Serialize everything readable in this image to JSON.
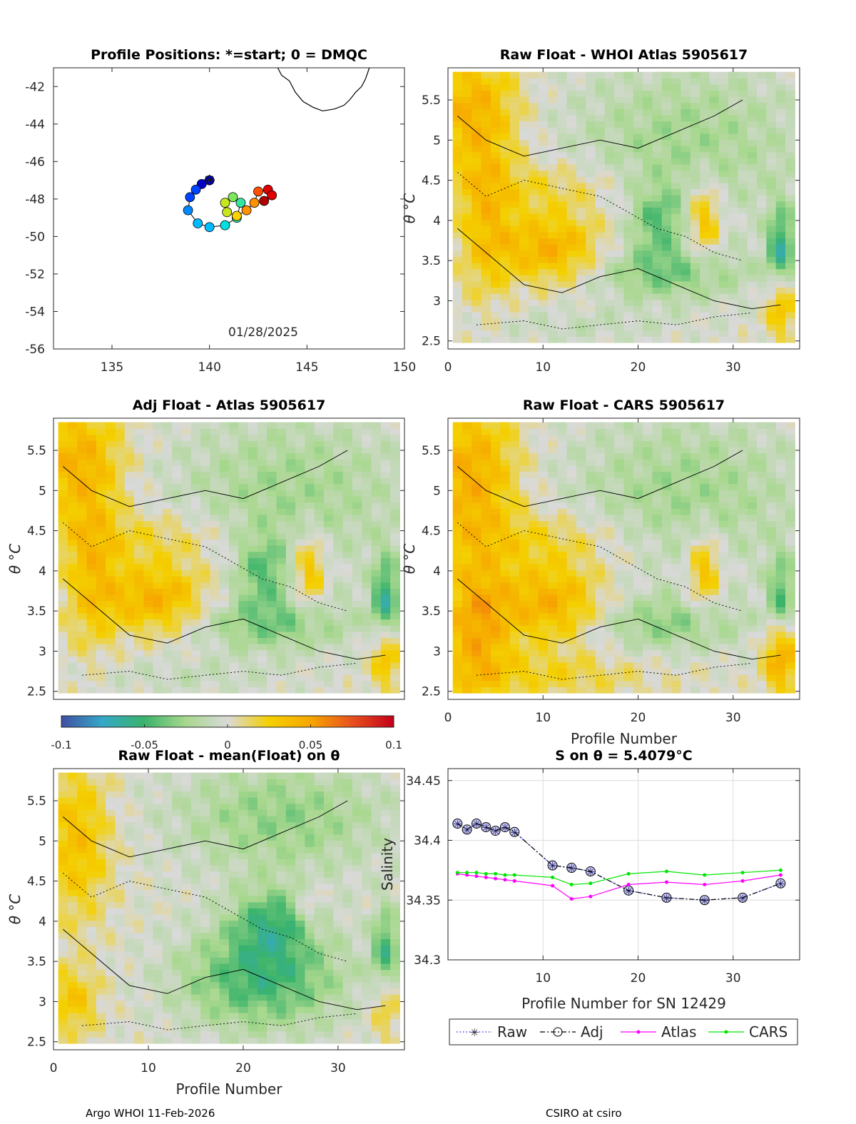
{
  "footer": {
    "left": "Argo WHOI 11-Feb-2026",
    "right": "CSIRO at csiro"
  },
  "colorbar": {
    "ticks": [
      "-0.1",
      "-0.05",
      "0",
      "0.05",
      "0.1"
    ],
    "stops": [
      "#3f4fa3",
      "#35a9c7",
      "#3ab36a",
      "#a8d88e",
      "#d9d9d9",
      "#f4d000",
      "#f7a600",
      "#e8501e",
      "#c3001a"
    ]
  },
  "chart_data": [
    {
      "type": "scatter",
      "id": "positions",
      "title": "Profile Positions: *=start; 0 = DMQC",
      "annotation": "01/28/2025",
      "xlim": [
        132,
        150
      ],
      "ylim": [
        -56,
        -41
      ],
      "xticks": [
        "135",
        "140",
        "145",
        "150"
      ],
      "yticks": [
        "-42",
        "-44",
        "-46",
        "-48",
        "-50",
        "-52",
        "-54",
        "-56"
      ],
      "xtick_values": [
        135,
        140,
        145,
        150
      ],
      "ytick_values": [
        -42,
        -44,
        -46,
        -48,
        -50,
        -52,
        -54,
        -56
      ],
      "track": [
        [
          140.0,
          -47.0
        ],
        [
          139.6,
          -47.2
        ],
        [
          139.3,
          -47.5
        ],
        [
          139.0,
          -47.9
        ],
        [
          138.9,
          -48.6
        ],
        [
          139.4,
          -49.3
        ],
        [
          140.0,
          -49.5
        ],
        [
          140.8,
          -49.4
        ],
        [
          141.4,
          -49.0
        ],
        [
          141.6,
          -48.2
        ],
        [
          141.2,
          -47.9
        ],
        [
          140.8,
          -48.2
        ],
        [
          140.9,
          -48.7
        ],
        [
          141.4,
          -48.9
        ],
        [
          141.9,
          -48.6
        ],
        [
          142.3,
          -48.2
        ],
        [
          142.5,
          -47.6
        ],
        [
          143.0,
          -47.5
        ],
        [
          143.2,
          -47.8
        ],
        [
          142.8,
          -48.1
        ]
      ],
      "start_marker": "*",
      "coast": [
        [
          143.5,
          -41.0
        ],
        [
          143.7,
          -41.4
        ],
        [
          144.1,
          -41.7
        ],
        [
          144.4,
          -42.3
        ],
        [
          144.8,
          -42.8
        ],
        [
          145.3,
          -43.1
        ],
        [
          145.8,
          -43.3
        ],
        [
          146.4,
          -43.2
        ],
        [
          146.9,
          -43.0
        ],
        [
          147.2,
          -42.7
        ],
        [
          147.5,
          -42.3
        ],
        [
          147.8,
          -42.0
        ],
        [
          148.0,
          -41.6
        ],
        [
          148.2,
          -41.0
        ]
      ]
    },
    {
      "type": "heatmap",
      "id": "raw_whoi",
      "title": "Raw Float - WHOI Atlas  5905617",
      "xlim": [
        0,
        37
      ],
      "ylim": [
        2.4,
        5.9
      ],
      "xticks": [
        "0",
        "10",
        "20",
        "30"
      ],
      "yticks": [
        "2.5",
        "3",
        "3.5",
        "4",
        "4.5",
        "5",
        "5.5"
      ],
      "xtick_values": [
        0,
        10,
        20,
        30
      ],
      "ytick_values": [
        2.5,
        3,
        3.5,
        4,
        4.5,
        5,
        5.5
      ],
      "ylabel": "θ °C",
      "xlabel": "",
      "clim": [
        -0.1,
        0.1
      ],
      "profiles": 36,
      "features": [
        {
          "x": 2.5,
          "y": 5.4,
          "sx": 3.5,
          "sy": 0.55,
          "a": 0.04
        },
        {
          "x": 4.0,
          "y": 4.0,
          "sx": 2.0,
          "sy": 0.7,
          "a": 0.03
        },
        {
          "x": 11.0,
          "y": 3.65,
          "sx": 4.0,
          "sy": 0.3,
          "a": 0.045
        },
        {
          "x": 11.0,
          "y": 4.4,
          "sx": 6.0,
          "sy": 0.25,
          "a": 0.02
        },
        {
          "x": 27.0,
          "y": 4.0,
          "sx": 1.2,
          "sy": 0.35,
          "a": 0.04
        },
        {
          "x": 23.0,
          "y": 3.35,
          "sx": 6.0,
          "sy": 0.25,
          "a": -0.035
        },
        {
          "x": 25.0,
          "y": 5.0,
          "sx": 9.0,
          "sy": 0.7,
          "a": -0.025
        },
        {
          "x": 22.0,
          "y": 4.0,
          "sx": 2.0,
          "sy": 0.3,
          "a": -0.035
        },
        {
          "x": 35.0,
          "y": 3.6,
          "sx": 1.0,
          "sy": 0.4,
          "a": -0.06
        },
        {
          "x": 35.0,
          "y": 3.0,
          "sx": 1.0,
          "sy": 0.3,
          "a": 0.05
        },
        {
          "x": 14.0,
          "y": 2.7,
          "sx": 8.0,
          "sy": 0.15,
          "a": -0.01
        }
      ]
    },
    {
      "type": "heatmap",
      "id": "adj_atlas",
      "title": "Adj Float - Atlas  5905617",
      "xlim": [
        0,
        37
      ],
      "ylim": [
        2.4,
        5.9
      ],
      "xticks": [],
      "yticks": [
        "2.5",
        "3",
        "3.5",
        "4",
        "4.5",
        "5",
        "5.5"
      ],
      "xtick_values": [],
      "ytick_values": [
        2.5,
        3,
        3.5,
        4,
        4.5,
        5,
        5.5
      ],
      "ylabel": "θ °C",
      "xlabel": "",
      "clim": [
        -0.1,
        0.1
      ],
      "profiles": 36,
      "features": [
        {
          "x": 2.5,
          "y": 5.4,
          "sx": 3.5,
          "sy": 0.55,
          "a": 0.04
        },
        {
          "x": 4.0,
          "y": 4.0,
          "sx": 2.0,
          "sy": 0.7,
          "a": 0.03
        },
        {
          "x": 11.0,
          "y": 3.65,
          "sx": 4.0,
          "sy": 0.3,
          "a": 0.045
        },
        {
          "x": 11.0,
          "y": 4.4,
          "sx": 6.0,
          "sy": 0.25,
          "a": 0.02
        },
        {
          "x": 27.0,
          "y": 4.0,
          "sx": 1.2,
          "sy": 0.35,
          "a": 0.04
        },
        {
          "x": 23.0,
          "y": 3.35,
          "sx": 6.0,
          "sy": 0.25,
          "a": -0.035
        },
        {
          "x": 25.0,
          "y": 5.0,
          "sx": 9.0,
          "sy": 0.7,
          "a": -0.025
        },
        {
          "x": 22.0,
          "y": 4.0,
          "sx": 2.0,
          "sy": 0.3,
          "a": -0.035
        },
        {
          "x": 35.0,
          "y": 3.6,
          "sx": 1.0,
          "sy": 0.4,
          "a": -0.06
        },
        {
          "x": 35.0,
          "y": 3.0,
          "sx": 1.0,
          "sy": 0.3,
          "a": 0.05
        },
        {
          "x": 14.0,
          "y": 2.7,
          "sx": 8.0,
          "sy": 0.15,
          "a": -0.01
        }
      ]
    },
    {
      "type": "heatmap",
      "id": "raw_cars",
      "title": "Raw Float - CARS  5905617",
      "xlim": [
        0,
        37
      ],
      "ylim": [
        2.4,
        5.9
      ],
      "xticks": [
        "0",
        "10",
        "20",
        "30"
      ],
      "yticks": [
        "2.5",
        "3",
        "3.5",
        "4",
        "4.5",
        "5",
        "5.5"
      ],
      "xtick_values": [
        0,
        10,
        20,
        30
      ],
      "ytick_values": [
        2.5,
        3,
        3.5,
        4,
        4.5,
        5,
        5.5
      ],
      "ylabel": "θ °C",
      "xlabel": "Profile Number",
      "clim": [
        -0.1,
        0.1
      ],
      "profiles": 36,
      "features": [
        {
          "x": 2.5,
          "y": 5.2,
          "sx": 3.5,
          "sy": 0.7,
          "a": 0.045
        },
        {
          "x": 3.0,
          "y": 3.3,
          "sx": 2.5,
          "sy": 0.6,
          "a": 0.045
        },
        {
          "x": 11.0,
          "y": 3.6,
          "sx": 4.0,
          "sy": 0.35,
          "a": 0.045
        },
        {
          "x": 11.0,
          "y": 4.4,
          "sx": 6.0,
          "sy": 0.25,
          "a": 0.02
        },
        {
          "x": 27.0,
          "y": 4.0,
          "sx": 1.2,
          "sy": 0.35,
          "a": 0.04
        },
        {
          "x": 23.0,
          "y": 3.35,
          "sx": 6.0,
          "sy": 0.25,
          "a": -0.03
        },
        {
          "x": 25.0,
          "y": 5.0,
          "sx": 9.0,
          "sy": 0.7,
          "a": -0.025
        },
        {
          "x": 35.0,
          "y": 3.6,
          "sx": 1.0,
          "sy": 0.4,
          "a": -0.05
        },
        {
          "x": 35.0,
          "y": 3.0,
          "sx": 1.2,
          "sy": 0.35,
          "a": 0.06
        },
        {
          "x": 10.0,
          "y": 2.7,
          "sx": 8.0,
          "sy": 0.2,
          "a": 0.02
        }
      ]
    },
    {
      "type": "heatmap",
      "id": "raw_mean",
      "title": "Raw Float - mean(Float) on θ",
      "xlim": [
        0,
        37
      ],
      "ylim": [
        2.4,
        5.9
      ],
      "xticks": [
        "0",
        "10",
        "20",
        "30"
      ],
      "yticks": [
        "2.5",
        "3",
        "3.5",
        "4",
        "4.5",
        "5",
        "5.5"
      ],
      "xtick_values": [
        0,
        10,
        20,
        30
      ],
      "ytick_values": [
        2.5,
        3,
        3.5,
        4,
        4.5,
        5,
        5.5
      ],
      "ylabel": "θ °C",
      "xlabel": "Profile Number",
      "clim": [
        -0.1,
        0.1
      ],
      "profiles": 36,
      "features": [
        {
          "x": 2.5,
          "y": 5.0,
          "sx": 2.5,
          "sy": 0.7,
          "a": 0.035
        },
        {
          "x": 2.0,
          "y": 3.0,
          "sx": 2.0,
          "sy": 0.3,
          "a": 0.03
        },
        {
          "x": 22.0,
          "y": 3.3,
          "sx": 6.0,
          "sy": 0.45,
          "a": -0.05
        },
        {
          "x": 23.0,
          "y": 4.0,
          "sx": 3.0,
          "sy": 0.3,
          "a": -0.04
        },
        {
          "x": 24.0,
          "y": 5.3,
          "sx": 8.0,
          "sy": 0.5,
          "a": -0.03
        },
        {
          "x": 35.0,
          "y": 3.6,
          "sx": 1.0,
          "sy": 0.4,
          "a": -0.05
        },
        {
          "x": 35.0,
          "y": 3.0,
          "sx": 1.0,
          "sy": 0.3,
          "a": 0.035
        },
        {
          "x": 27.0,
          "y": 4.2,
          "sx": 1.0,
          "sy": 0.2,
          "a": 0.02
        }
      ]
    },
    {
      "type": "line",
      "id": "salinity",
      "title": "S on θ = 5.4079°C",
      "xlabel": "Profile Number for SN 12429",
      "ylabel": "Salinity",
      "xlim": [
        0,
        37
      ],
      "ylim": [
        34.3,
        34.46
      ],
      "xticks": [
        "10",
        "20",
        "30"
      ],
      "yticks": [
        "34.3",
        "34.35",
        "34.4",
        "34.45"
      ],
      "xtick_values": [
        10,
        20,
        30
      ],
      "ytick_values": [
        34.3,
        34.35,
        34.4,
        34.45
      ],
      "legend": "bottom",
      "series": [
        {
          "name": "Raw",
          "color": "#1a1ae6",
          "style": "dotted",
          "marker": "star",
          "x": [
            1,
            2,
            3,
            4,
            5,
            6,
            7,
            11,
            13,
            15,
            19,
            23,
            27,
            31,
            35
          ],
          "y": [
            34.414,
            34.409,
            34.414,
            34.411,
            34.408,
            34.411,
            34.407,
            34.379,
            34.377,
            34.374,
            34.358,
            34.352,
            34.35,
            34.352,
            34.364
          ]
        },
        {
          "name": "Adj",
          "color": "#000000",
          "style": "dashdot",
          "marker": "circle",
          "x": [
            1,
            2,
            3,
            4,
            5,
            6,
            7,
            11,
            13,
            15,
            19,
            23,
            27,
            31,
            35
          ],
          "y": [
            34.414,
            34.409,
            34.414,
            34.411,
            34.408,
            34.411,
            34.407,
            34.379,
            34.377,
            34.374,
            34.358,
            34.352,
            34.35,
            34.352,
            34.364
          ]
        },
        {
          "name": "Atlas",
          "color": "#ff00ff",
          "style": "solid",
          "marker": "dot",
          "x": [
            1,
            2,
            3,
            4,
            5,
            6,
            7,
            11,
            13,
            15,
            19,
            23,
            27,
            31,
            35
          ],
          "y": [
            34.372,
            34.371,
            34.37,
            34.369,
            34.368,
            34.367,
            34.366,
            34.362,
            34.351,
            34.353,
            34.363,
            34.365,
            34.363,
            34.366,
            34.371
          ]
        },
        {
          "name": "CARS",
          "color": "#00e600",
          "style": "solid",
          "marker": "dot",
          "x": [
            1,
            2,
            3,
            4,
            5,
            6,
            7,
            11,
            13,
            15,
            19,
            23,
            27,
            31,
            35
          ],
          "y": [
            34.373,
            34.373,
            34.373,
            34.372,
            34.372,
            34.371,
            34.371,
            34.369,
            34.363,
            34.364,
            34.372,
            34.374,
            34.371,
            34.373,
            34.375
          ]
        }
      ]
    }
  ]
}
